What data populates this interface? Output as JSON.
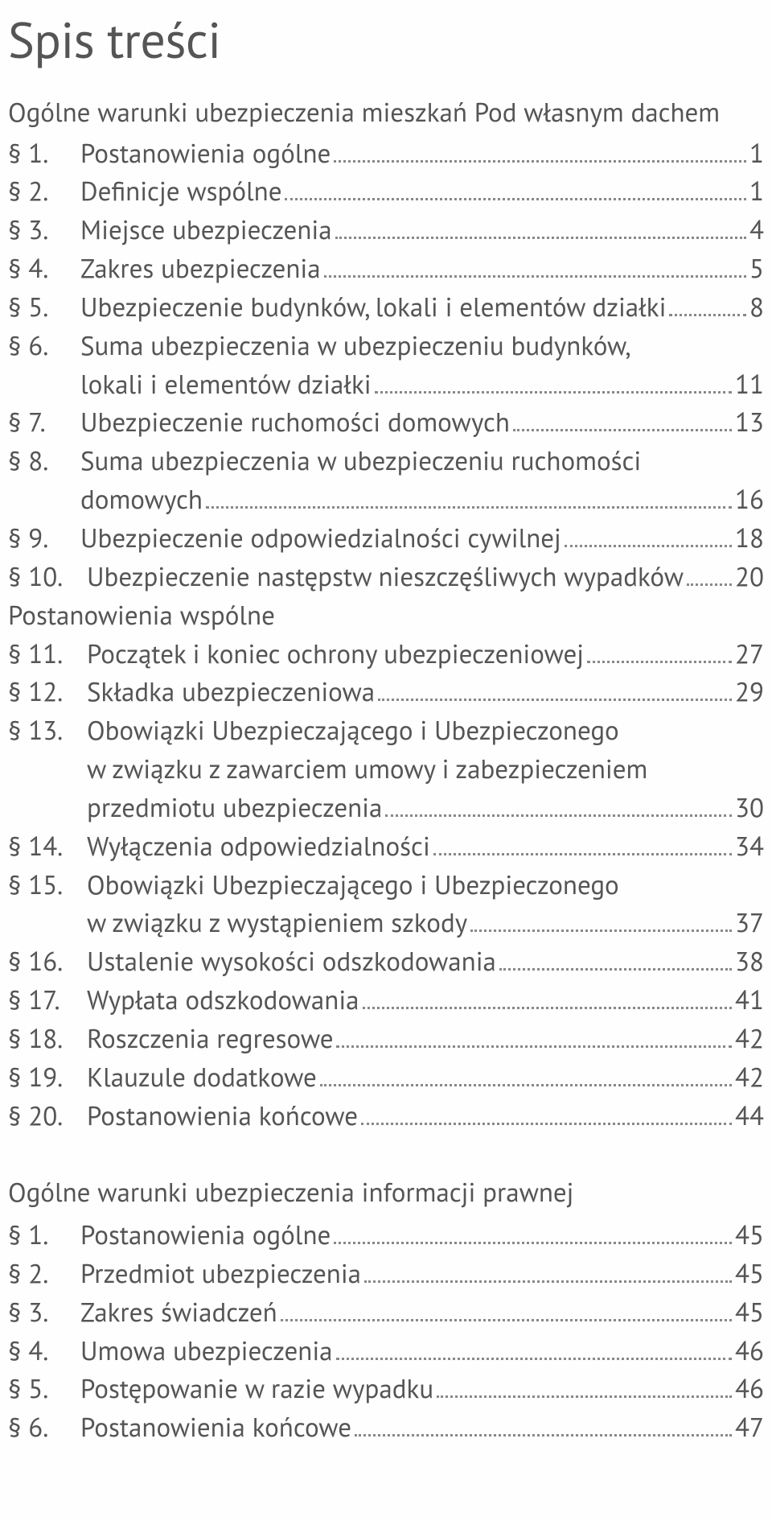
{
  "title": "Spis treści",
  "colors": {
    "text": "#555555",
    "background": "#fefefe",
    "dots": "#888888"
  },
  "typography": {
    "title_fontsize_pt": 46,
    "body_fontsize_pt": 25,
    "font_family": "PT Sans, Segoe UI, Helvetica Neue, Arial, sans-serif"
  },
  "sections": [
    {
      "header": "Ogólne warunki ubezpieczenia mieszkań Pod własnym dachem",
      "entries": [
        {
          "num": "§ 1.",
          "lines": [
            "Postanowienia ogólne"
          ],
          "page": "1"
        },
        {
          "num": "§ 2.",
          "lines": [
            "Definicje wspólne"
          ],
          "page": "1"
        },
        {
          "num": "§ 3.",
          "lines": [
            "Miejsce ubezpieczenia"
          ],
          "page": "4"
        },
        {
          "num": "§ 4.",
          "lines": [
            "Zakres ubezpieczenia"
          ],
          "page": "5"
        },
        {
          "num": "§ 5.",
          "lines": [
            "Ubezpieczenie budynków, lokali i elementów działki"
          ],
          "page": "8"
        },
        {
          "num": "§ 6.",
          "lines": [
            "Suma ubezpieczenia w ubezpieczeniu budynków,",
            "lokali i elementów działki"
          ],
          "page": "11"
        },
        {
          "num": "§ 7.",
          "lines": [
            "Ubezpieczenie ruchomości domowych"
          ],
          "page": "13"
        },
        {
          "num": "§ 8.",
          "lines": [
            "Suma ubezpieczenia w ubezpieczeniu ruchomości",
            "domowych"
          ],
          "page": "16"
        },
        {
          "num": "§ 9.",
          "lines": [
            "Ubezpieczenie odpowiedzialności cywilnej"
          ],
          "page": "18"
        },
        {
          "num": "§ 10.",
          "wide": true,
          "lines": [
            "Ubezpieczenie następstw nieszczęśliwych wypadków"
          ],
          "page": "20"
        }
      ]
    },
    {
      "header": "Postanowienia wspólne",
      "inline": true,
      "entries": [
        {
          "num": "§ 11.",
          "wide": true,
          "lines": [
            "Początek i koniec ochrony ubezpieczeniowej"
          ],
          "page": "27"
        },
        {
          "num": "§ 12.",
          "wide": true,
          "lines": [
            "Składka ubezpieczeniowa"
          ],
          "page": "29"
        },
        {
          "num": "§ 13.",
          "wide": true,
          "lines": [
            "Obowiązki Ubezpieczającego i Ubezpieczonego",
            " w związku z zawarciem umowy i zabezpieczeniem",
            "przedmiotu ubezpieczenia"
          ],
          "page": "30"
        },
        {
          "num": "§ 14.",
          "wide": true,
          "lines": [
            "Wyłączenia odpowiedzialności"
          ],
          "page": "34"
        },
        {
          "num": "§ 15.",
          "wide": true,
          "lines": [
            "Obowiązki Ubezpieczającego i Ubezpieczonego",
            "w związku z wystąpieniem szkody"
          ],
          "page": "37"
        },
        {
          "num": "§ 16.",
          "wide": true,
          "lines": [
            "Ustalenie wysokości odszkodowania"
          ],
          "page": "38"
        },
        {
          "num": "§ 17.",
          "wide": true,
          "lines": [
            "Wypłata odszkodowania"
          ],
          "page": "41"
        },
        {
          "num": "§ 18.",
          "wide": true,
          "lines": [
            "Roszczenia regresowe"
          ],
          "page": "42"
        },
        {
          "num": "§ 19.",
          "wide": true,
          "lines": [
            "Klauzule dodatkowe"
          ],
          "page": "42"
        },
        {
          "num": "§ 20.",
          "wide": true,
          "lines": [
            "Postanowienia końcowe"
          ],
          "page": "44"
        }
      ]
    },
    {
      "header": "Ogólne warunki ubezpieczenia informacji prawnej",
      "spaced": true,
      "entries": [
        {
          "num": "§ 1.",
          "lines": [
            "Postanowienia ogólne"
          ],
          "page": "45"
        },
        {
          "num": "§ 2.",
          "lines": [
            "Przedmiot ubezpieczenia"
          ],
          "page": "45"
        },
        {
          "num": "§ 3.",
          "lines": [
            "Zakres świadczeń"
          ],
          "page": "45"
        },
        {
          "num": "§ 4.",
          "lines": [
            "Umowa ubezpieczenia"
          ],
          "page": "46"
        },
        {
          "num": "§ 5.",
          "lines": [
            "Postępowanie w razie wypadku"
          ],
          "page": "46"
        },
        {
          "num": "§ 6.",
          "lines": [
            "Postanowienia końcowe"
          ],
          "page": "47"
        }
      ]
    }
  ]
}
